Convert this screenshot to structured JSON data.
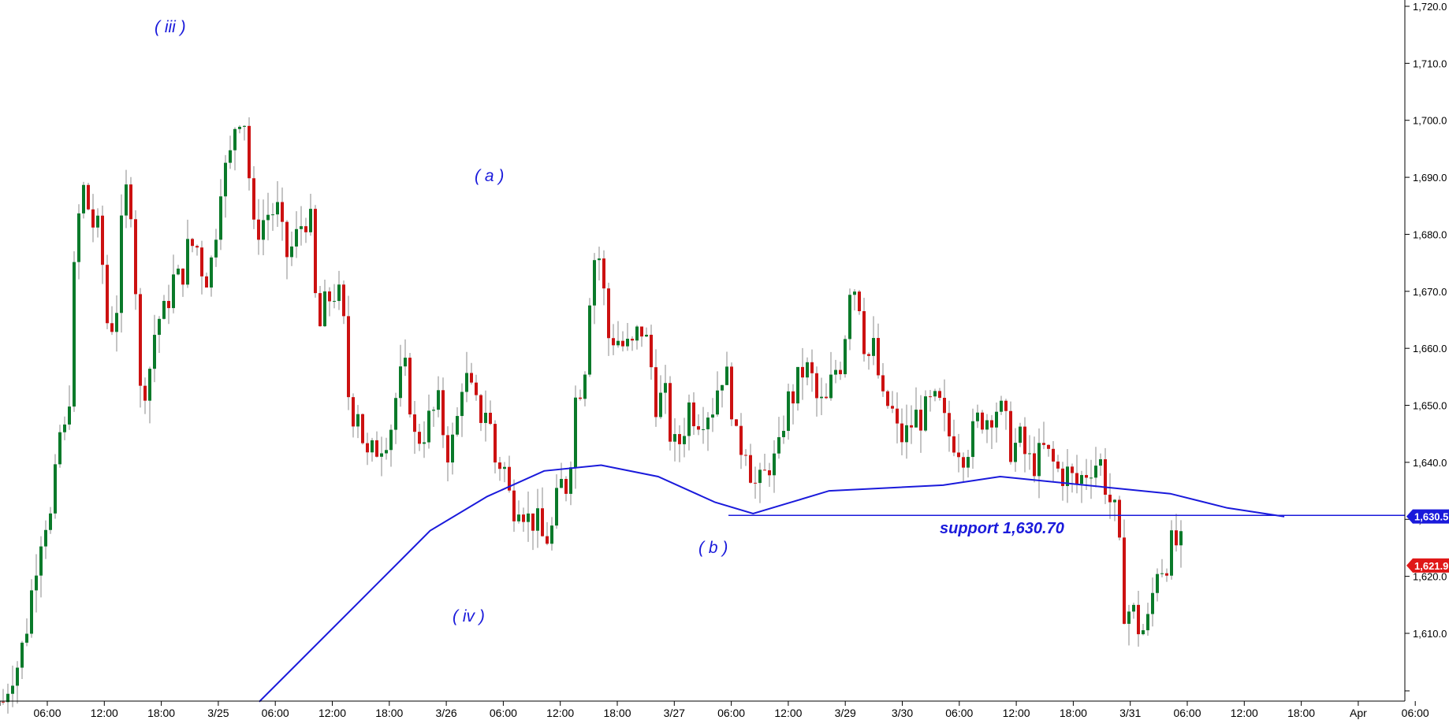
{
  "chart_data": {
    "type": "candlestick",
    "y_range": [
      1598,
      1722
    ],
    "y_ticks": [
      "1,720.0",
      "1,710.0",
      "1,700.0",
      "1,690.0",
      "1,680.0",
      "1,670.0",
      "1,660.0",
      "1,650.0",
      "1,640.0",
      "1,630.0",
      "1,620.0",
      "1,610.0"
    ],
    "x_ticks": [
      "06:00",
      "12:00",
      "18:00",
      "3/25",
      "06:00",
      "12:00",
      "18:00",
      "3/26",
      "06:00",
      "12:00",
      "18:00",
      "3/27",
      "06:00",
      "12:00",
      "3/29",
      "3/30",
      "06:00",
      "12:00",
      "18:00",
      "3/31",
      "06:00",
      "12:00",
      "18:00",
      "Apr",
      "06:00"
    ],
    "price_path": [
      [
        1598,
        1603
      ],
      [
        1605,
        1612
      ],
      [
        1622,
        1630
      ],
      [
        1630,
        1645
      ],
      [
        1645,
        1680
      ],
      [
        1688,
        1682
      ],
      [
        1680,
        1663
      ],
      [
        1666,
        1688
      ],
      [
        1685,
        1652
      ],
      [
        1655,
        1665
      ],
      [
        1666,
        1672
      ],
      [
        1672,
        1678
      ],
      [
        1678,
        1672
      ],
      [
        1676,
        1690
      ],
      [
        1692,
        1702
      ],
      [
        1700,
        1680
      ],
      [
        1682,
        1684
      ],
      [
        1684,
        1676
      ],
      [
        1678,
        1682
      ],
      [
        1684,
        1662
      ],
      [
        1668,
        1670
      ],
      [
        1668,
        1648
      ],
      [
        1650,
        1640
      ],
      [
        1642,
        1644
      ],
      [
        1646,
        1654
      ],
      [
        1656,
        1644
      ],
      [
        1645,
        1648
      ],
      [
        1650,
        1642
      ],
      [
        1644,
        1656
      ],
      [
        1652,
        1648
      ],
      [
        1650,
        1640
      ],
      [
        1640,
        1632
      ],
      [
        1634,
        1630
      ],
      [
        1630,
        1626
      ],
      [
        1628,
        1636
      ],
      [
        1636,
        1652
      ],
      [
        1655,
        1676
      ],
      [
        1676,
        1662
      ],
      [
        1662,
        1660
      ],
      [
        1660,
        1664
      ],
      [
        1660,
        1650
      ],
      [
        1652,
        1642
      ],
      [
        1644,
        1650
      ],
      [
        1648,
        1649
      ],
      [
        1650,
        1656
      ],
      [
        1654,
        1642
      ],
      [
        1644,
        1636
      ],
      [
        1636,
        1640
      ],
      [
        1640,
        1650
      ],
      [
        1652,
        1656
      ],
      [
        1656,
        1650
      ],
      [
        1650,
        1656
      ],
      [
        1658,
        1672
      ],
      [
        1670,
        1658
      ],
      [
        1660,
        1650
      ],
      [
        1650,
        1644
      ],
      [
        1645,
        1648
      ],
      [
        1648,
        1650
      ],
      [
        1650,
        1645
      ],
      [
        1644,
        1642
      ],
      [
        1644,
        1648
      ],
      [
        1648,
        1650
      ],
      [
        1648,
        1642
      ],
      [
        1644,
        1640
      ],
      [
        1640,
        1642
      ],
      [
        1640,
        1638
      ],
      [
        1638,
        1636
      ],
      [
        1638,
        1640
      ],
      [
        1640,
        1634
      ],
      [
        1630,
        1614
      ],
      [
        1614,
        1610
      ],
      [
        1612,
        1622
      ],
      [
        1622,
        1626
      ],
      [
        1625,
        1622
      ]
    ],
    "moving_average": [
      [
        "3/25 06:00",
        1598
      ],
      [
        "3/25 18:00",
        1618
      ],
      [
        "3/26 00:00",
        1628
      ],
      [
        "3/26 06:00",
        1634
      ],
      [
        "3/26 12:00",
        1638.5
      ],
      [
        "3/26 18:00",
        1639.5
      ],
      [
        "3/27 00:00",
        1637.5
      ],
      [
        "3/27 06:00",
        1633
      ],
      [
        "3/27 10:00",
        1631
      ],
      [
        "3/27 14:00",
        1633
      ],
      [
        "3/29 00:00",
        1635
      ],
      [
        "3/30 06:00",
        1636
      ],
      [
        "3/30 12:00",
        1637.5
      ],
      [
        "3/30 18:00",
        1636.5
      ],
      [
        "3/31 00:00",
        1635.5
      ],
      [
        "3/31 06:00",
        1634.5
      ],
      [
        "3/31 12:00",
        1632
      ],
      [
        "3/31 18:00",
        1630.5
      ]
    ],
    "support_level": 1630.7,
    "last_ma": 1630.5,
    "last_price": 1621.9,
    "colors": {
      "up": "#0a7a2a",
      "down": "#cc1111",
      "wick": "#888888",
      "ma": "#1a1adb",
      "badge_ma": "#1a1adb",
      "badge_price": "#e01818"
    }
  },
  "annotations": {
    "wave_iii": "( iii )",
    "wave_a": "( a )",
    "wave_iv": "( iv )",
    "wave_b": "( b )",
    "support_text": "support 1,630.70"
  },
  "badges": {
    "ma_value": "1,630.5",
    "price_value": "1,621.9"
  }
}
